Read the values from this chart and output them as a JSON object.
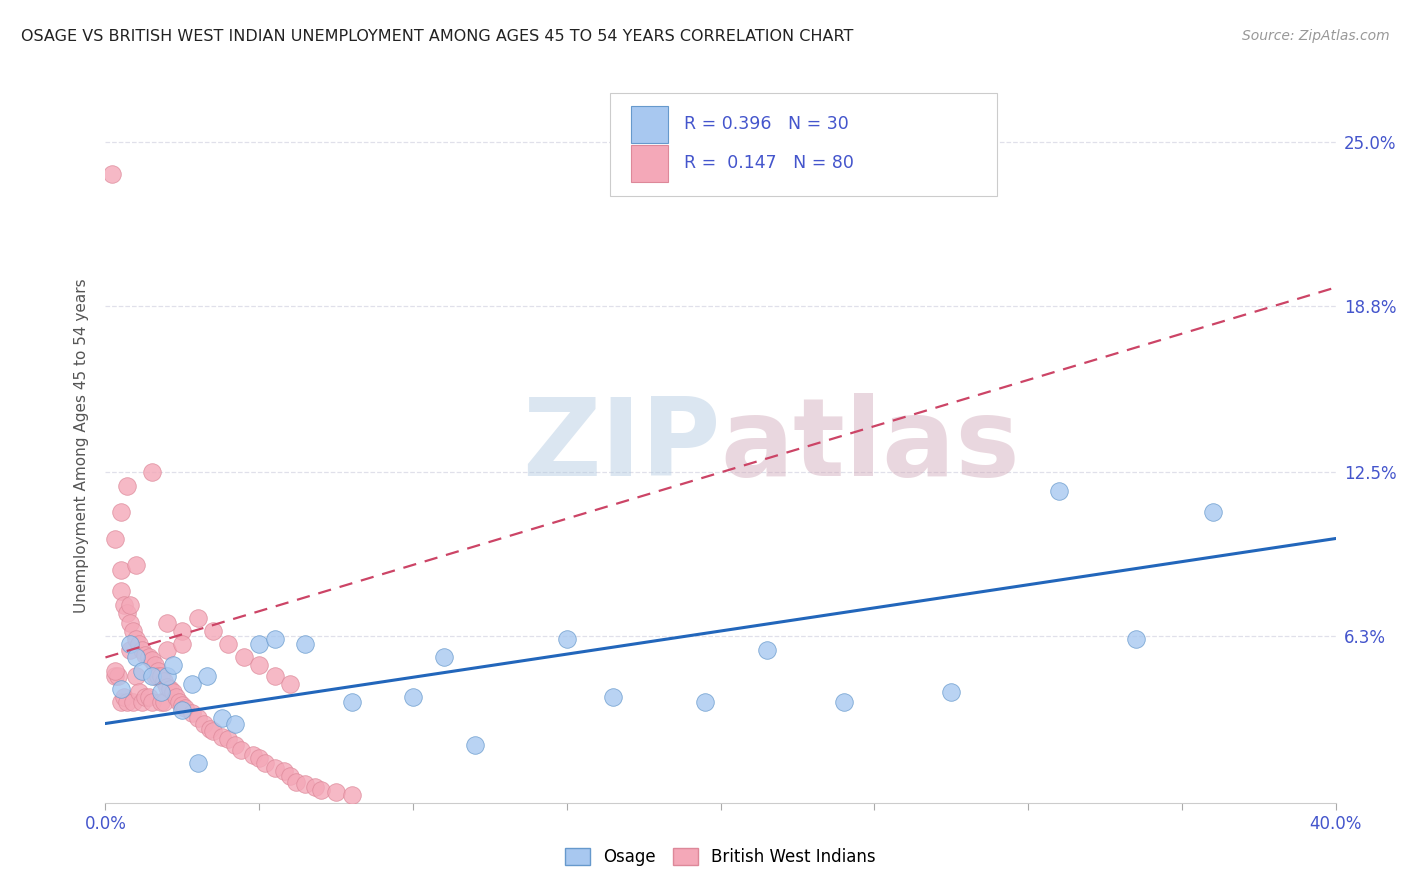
{
  "title": "OSAGE VS BRITISH WEST INDIAN UNEMPLOYMENT AMONG AGES 45 TO 54 YEARS CORRELATION CHART",
  "source": "Source: ZipAtlas.com",
  "ylabel": "Unemployment Among Ages 45 to 54 years",
  "xlim": [
    0.0,
    0.4
  ],
  "ylim": [
    0.0,
    0.27
  ],
  "ytick_positions": [
    0.063,
    0.125,
    0.188,
    0.25
  ],
  "ytick_labels": [
    "6.3%",
    "12.5%",
    "18.8%",
    "25.0%"
  ],
  "xticks": [
    0.0,
    0.05,
    0.1,
    0.15,
    0.2,
    0.25,
    0.3,
    0.35,
    0.4
  ],
  "osage_R": 0.396,
  "osage_N": 30,
  "bwi_R": 0.147,
  "bwi_N": 80,
  "osage_color": "#a8c8f0",
  "bwi_color": "#f4a8b8",
  "osage_edge_color": "#6699cc",
  "bwi_edge_color": "#dd8899",
  "osage_line_color": "#2266bb",
  "bwi_line_color": "#cc4466",
  "tick_label_color": "#4455cc",
  "title_color": "#222222",
  "ylabel_color": "#555555",
  "source_color": "#999999",
  "grid_color": "#e0e0ea",
  "background": "#ffffff",
  "osage_x": [
    0.005,
    0.008,
    0.01,
    0.012,
    0.015,
    0.018,
    0.02,
    0.022,
    0.025,
    0.028,
    0.03,
    0.033,
    0.038,
    0.042,
    0.05,
    0.055,
    0.065,
    0.08,
    0.1,
    0.11,
    0.12,
    0.15,
    0.165,
    0.195,
    0.215,
    0.24,
    0.275,
    0.31,
    0.335,
    0.36
  ],
  "osage_y": [
    0.043,
    0.06,
    0.055,
    0.05,
    0.048,
    0.042,
    0.048,
    0.052,
    0.035,
    0.045,
    0.015,
    0.048,
    0.032,
    0.03,
    0.06,
    0.062,
    0.06,
    0.038,
    0.04,
    0.055,
    0.022,
    0.062,
    0.04,
    0.038,
    0.058,
    0.038,
    0.042,
    0.118,
    0.062,
    0.11
  ],
  "bwi_x": [
    0.002,
    0.003,
    0.004,
    0.005,
    0.005,
    0.006,
    0.006,
    0.007,
    0.007,
    0.008,
    0.008,
    0.009,
    0.009,
    0.01,
    0.01,
    0.011,
    0.011,
    0.012,
    0.012,
    0.013,
    0.013,
    0.014,
    0.014,
    0.015,
    0.015,
    0.016,
    0.016,
    0.017,
    0.017,
    0.018,
    0.018,
    0.019,
    0.019,
    0.02,
    0.02,
    0.021,
    0.022,
    0.023,
    0.024,
    0.025,
    0.025,
    0.026,
    0.028,
    0.03,
    0.03,
    0.032,
    0.034,
    0.035,
    0.035,
    0.038,
    0.04,
    0.04,
    0.042,
    0.044,
    0.045,
    0.048,
    0.05,
    0.05,
    0.052,
    0.055,
    0.055,
    0.058,
    0.06,
    0.06,
    0.062,
    0.065,
    0.068,
    0.07,
    0.075,
    0.08,
    0.003,
    0.005,
    0.008,
    0.01,
    0.015,
    0.02,
    0.025,
    0.005,
    0.003,
    0.007
  ],
  "bwi_y": [
    0.238,
    0.048,
    0.048,
    0.08,
    0.038,
    0.075,
    0.04,
    0.072,
    0.038,
    0.068,
    0.058,
    0.065,
    0.038,
    0.062,
    0.048,
    0.06,
    0.042,
    0.058,
    0.038,
    0.056,
    0.04,
    0.055,
    0.04,
    0.054,
    0.038,
    0.052,
    0.048,
    0.05,
    0.048,
    0.048,
    0.038,
    0.046,
    0.038,
    0.044,
    0.058,
    0.043,
    0.042,
    0.04,
    0.038,
    0.037,
    0.065,
    0.036,
    0.034,
    0.032,
    0.07,
    0.03,
    0.028,
    0.027,
    0.065,
    0.025,
    0.024,
    0.06,
    0.022,
    0.02,
    0.055,
    0.018,
    0.017,
    0.052,
    0.015,
    0.013,
    0.048,
    0.012,
    0.01,
    0.045,
    0.008,
    0.007,
    0.006,
    0.005,
    0.004,
    0.003,
    0.1,
    0.088,
    0.075,
    0.09,
    0.125,
    0.068,
    0.06,
    0.11,
    0.05,
    0.12
  ],
  "osage_trend_x0": 0.0,
  "osage_trend_y0": 0.03,
  "osage_trend_x1": 0.4,
  "osage_trend_y1": 0.1,
  "bwi_trend_x0": 0.0,
  "bwi_trend_y0": 0.055,
  "bwi_trend_x1": 0.4,
  "bwi_trend_y1": 0.195
}
